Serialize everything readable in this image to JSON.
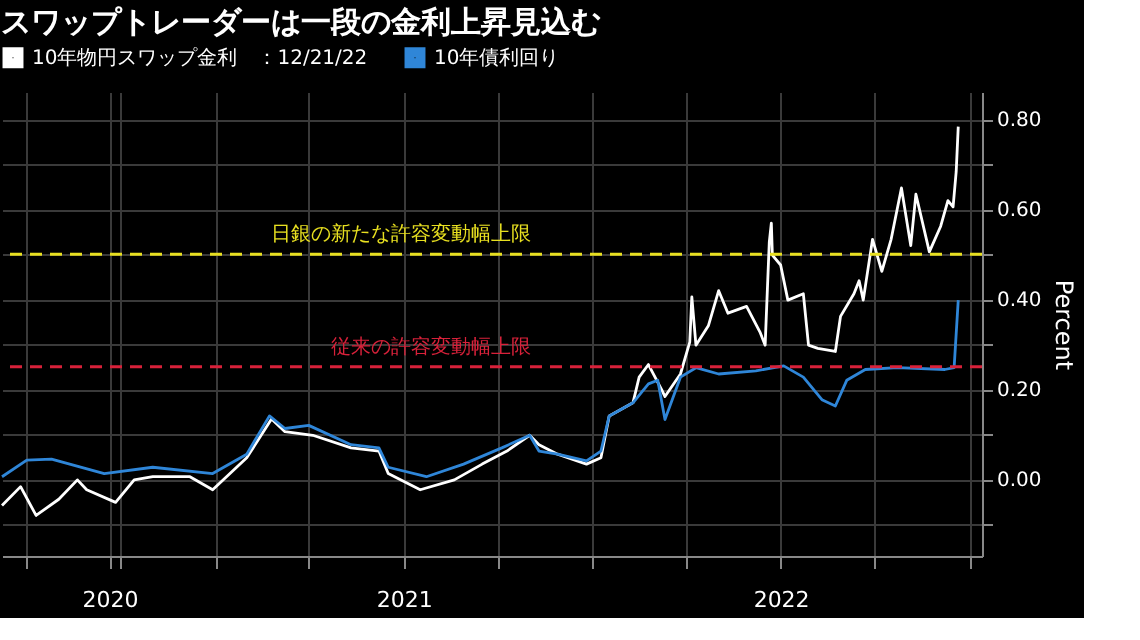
{
  "chart_data": {
    "type": "line",
    "title": "スワップトレーダーは一段の金利上昇見込む",
    "ylabel": "Percent",
    "series": [
      {
        "name": "10年物円スワップ金利　：12/21/22",
        "color": "#ffffff",
        "x": [
          "2020-06-08",
          "2020-06-26",
          "2020-07-11",
          "2020-08-02",
          "2020-08-20",
          "2020-08-29",
          "2020-09-26",
          "2020-10-14",
          "2020-11-01",
          "2020-12-07",
          "2020-12-29",
          "2021-01-31",
          "2021-02-24",
          "2021-03-09",
          "2021-04-05",
          "2021-05-12",
          "2021-06-08",
          "2021-06-17",
          "2021-07-18",
          "2021-08-20",
          "2021-09-16",
          "2021-10-10",
          "2021-11-01",
          "2021-11-10",
          "2021-11-28",
          "2021-12-26",
          "2022-01-09",
          "2022-01-17",
          "2022-02-09",
          "2022-02-15",
          "2022-02-24",
          "2022-03-09",
          "2022-03-12",
          "2022-03-27",
          "2022-04-05",
          "2022-04-07",
          "2022-04-11",
          "2022-04-23",
          "2022-05-03",
          "2022-05-12",
          "2022-05-30",
          "2022-06-12",
          "2022-06-17",
          "2022-06-21",
          "2022-06-23",
          "2022-06-24",
          "2022-07-02",
          "2022-07-09",
          "2022-07-24",
          "2022-07-29",
          "2022-08-07",
          "2022-08-24",
          "2022-08-29",
          "2022-09-11",
          "2022-09-16",
          "2022-09-20",
          "2022-09-29",
          "2022-10-08",
          "2022-10-17",
          "2022-10-27",
          "2022-11-05",
          "2022-11-10",
          "2022-11-23",
          "2022-12-04",
          "2022-12-11",
          "2022-12-16",
          "2022-12-19",
          "2022-12-21"
        ],
        "values": [
          -0.058,
          -0.016,
          -0.08,
          -0.044,
          -0.001,
          -0.023,
          -0.051,
          -0.001,
          0.006,
          0.006,
          -0.023,
          0.048,
          0.134,
          0.106,
          0.098,
          0.07,
          0.063,
          0.013,
          -0.023,
          -0.001,
          0.034,
          0.063,
          0.098,
          0.077,
          0.056,
          0.034,
          0.048,
          0.141,
          0.17,
          0.227,
          0.255,
          0.198,
          0.184,
          0.234,
          0.305,
          0.405,
          0.298,
          0.341,
          0.419,
          0.369,
          0.384,
          0.327,
          0.298,
          0.526,
          0.569,
          0.498,
          0.476,
          0.398,
          0.412,
          0.298,
          0.291,
          0.284,
          0.362,
          0.412,
          0.441,
          0.398,
          0.533,
          0.462,
          0.533,
          0.647,
          0.519,
          0.633,
          0.505,
          0.562,
          0.619,
          0.605,
          0.683,
          0.783
        ]
      },
      {
        "name": "10年債利回り",
        "color": "#2f86d8",
        "x": [
          "2020-06-08",
          "2020-07-02",
          "2020-07-26",
          "2020-09-15",
          "2020-11-01",
          "2020-12-29",
          "2021-01-31",
          "2021-02-22",
          "2021-03-09",
          "2021-04-01",
          "2021-05-12",
          "2021-06-08",
          "2021-06-17",
          "2021-07-24",
          "2021-08-29",
          "2021-10-05",
          "2021-11-01",
          "2021-11-10",
          "2021-11-28",
          "2021-12-26",
          "2022-01-09",
          "2022-01-17",
          "2022-02-09",
          "2022-02-24",
          "2022-03-05",
          "2022-03-12",
          "2022-03-27",
          "2022-04-11",
          "2022-05-03",
          "2022-06-08",
          "2022-07-05",
          "2022-07-24",
          "2022-08-11",
          "2022-08-24",
          "2022-09-04",
          "2022-09-22",
          "2022-10-23",
          "2022-12-08",
          "2022-12-17",
          "2022-12-21"
        ],
        "values": [
          0.006,
          0.043,
          0.045,
          0.013,
          0.027,
          0.013,
          0.056,
          0.141,
          0.113,
          0.12,
          0.077,
          0.07,
          0.027,
          0.006,
          0.034,
          0.07,
          0.098,
          0.063,
          0.056,
          0.041,
          0.063,
          0.141,
          0.17,
          0.212,
          0.22,
          0.133,
          0.227,
          0.248,
          0.234,
          0.241,
          0.252,
          0.227,
          0.177,
          0.163,
          0.22,
          0.244,
          0.248,
          0.244,
          0.248,
          0.398
        ]
      }
    ],
    "xlim": [
      "2020-06-08",
      "2023-01-13"
    ],
    "xticks": [
      {
        "value": "2020-07-01",
        "label": null
      },
      {
        "value": "2020-09-20",
        "label": "2020"
      },
      {
        "value": "2020-10-01",
        "label": null
      },
      {
        "value": "2021-01-01",
        "label": null
      },
      {
        "value": "2021-04-01",
        "label": null
      },
      {
        "value": "2021-07-02",
        "label": "2021"
      },
      {
        "value": "2021-10-01",
        "label": null
      },
      {
        "value": "2022-01-01",
        "label": null
      },
      {
        "value": "2022-04-01",
        "label": null
      },
      {
        "value": "2022-07-02",
        "label": "2022"
      },
      {
        "value": "2022-10-01",
        "label": null
      },
      {
        "value": "2023-01-01",
        "label": null
      }
    ],
    "ylim": [
      -0.17,
      0.86
    ],
    "yticks": [
      {
        "value": -0.1,
        "label": null
      },
      {
        "value": 0,
        "label": "0.00"
      },
      {
        "value": 0.1,
        "label": null
      },
      {
        "value": 0.2,
        "label": "0.20"
      },
      {
        "value": 0.3,
        "label": null
      },
      {
        "value": 0.4,
        "label": "0.40"
      },
      {
        "value": 0.5,
        "label": null
      },
      {
        "value": 0.6,
        "label": "0.60"
      },
      {
        "value": 0.7,
        "label": null
      },
      {
        "value": 0.8,
        "label": "0.80"
      }
    ],
    "ref_lines": [
      {
        "axis": "y",
        "value": 0.5,
        "label": "日銀の新たな許容変動幅上限",
        "color": "#e8e020",
        "line_style": "dashed"
      },
      {
        "axis": "y",
        "value": 0.25,
        "label": "従来の許容変動幅上限",
        "color": "#d8213a",
        "line_style": "dashed"
      }
    ],
    "grid": true,
    "legend": "top left",
    "line_style": "solid",
    "marker": "none"
  }
}
